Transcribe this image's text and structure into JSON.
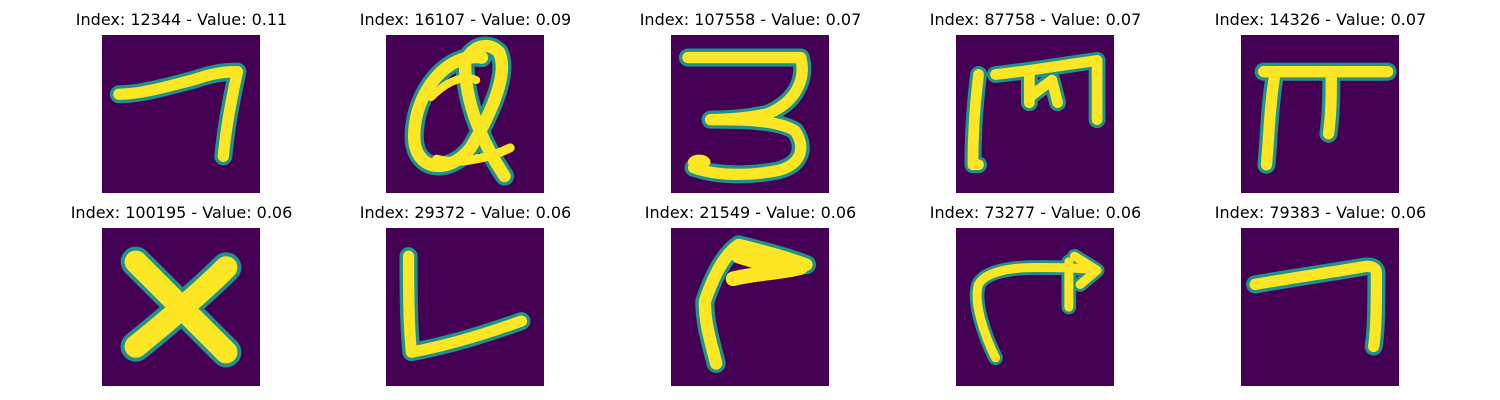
{
  "colors": {
    "background": "#440154",
    "stroke_edge": "#21918c",
    "stroke_mid": "#5ec962",
    "stroke_core": "#fde725"
  },
  "panels": [
    {
      "title": "Index: 12344 - Value: 0.11",
      "glyph": "seven-like-stroke"
    },
    {
      "title": "Index: 16107 - Value: 0.09",
      "glyph": "q-like-stroke"
    },
    {
      "title": "Index: 107558 - Value: 0.07",
      "glyph": "three-like-stroke"
    },
    {
      "title": "Index: 87758 - Value: 0.07",
      "glyph": "m-like-stroke"
    },
    {
      "title": "Index: 14326 - Value: 0.07",
      "glyph": "pi-like-stroke"
    },
    {
      "title": "Index: 100195 - Value: 0.06",
      "glyph": "x-like-stroke"
    },
    {
      "title": "Index: 29372 - Value: 0.06",
      "glyph": "l-like-stroke"
    },
    {
      "title": "Index: 21549 - Value: 0.06",
      "glyph": "hook-like-stroke"
    },
    {
      "title": "Index: 73277 - Value: 0.06",
      "glyph": "arrow-like-stroke"
    },
    {
      "title": "Index: 79383 - Value: 0.06",
      "glyph": "seven-like-stroke"
    }
  ]
}
